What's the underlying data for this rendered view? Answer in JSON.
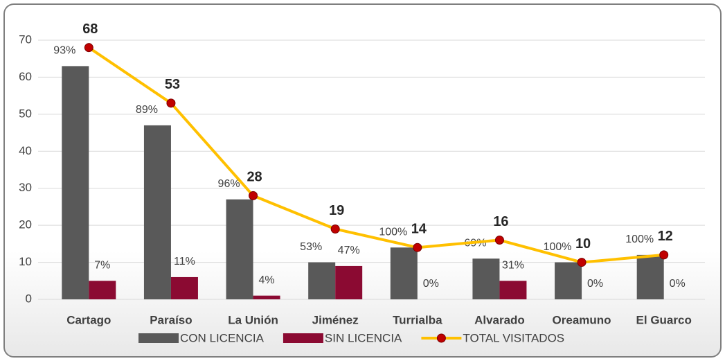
{
  "chart_data": {
    "type": "bar_line",
    "categories": [
      "Cartago",
      "Paraíso",
      "La Unión",
      "Jiménez",
      "Turrialba",
      "Alvarado",
      "Oreamuno",
      "El Guarco"
    ],
    "series": [
      {
        "name": "CON LICENCIA",
        "type": "bar",
        "color": "#595959",
        "values": [
          63,
          47,
          27,
          10,
          14,
          11,
          10,
          12
        ],
        "share_labels": [
          "93%",
          "89%",
          "96%",
          "53%",
          "100%",
          "69%",
          "100%",
          "100%"
        ]
      },
      {
        "name": "SIN LICENCIA",
        "type": "bar",
        "color": "#8b0a32",
        "values": [
          5,
          6,
          1,
          9,
          0,
          5,
          0,
          0
        ],
        "share_labels": [
          "7%",
          "11%",
          "4%",
          "47%",
          "0%",
          "31%",
          "0%",
          "0%"
        ]
      },
      {
        "name": "TOTAL VISITADOS",
        "type": "line",
        "color": "#ffc000",
        "marker_color": "#c00000",
        "values": [
          68,
          53,
          28,
          19,
          14,
          16,
          10,
          12
        ]
      }
    ],
    "ylim": [
      0,
      70
    ],
    "yticks": [
      0,
      10,
      20,
      30,
      40,
      50,
      60,
      70
    ],
    "grid": true,
    "legend": "bottom"
  }
}
